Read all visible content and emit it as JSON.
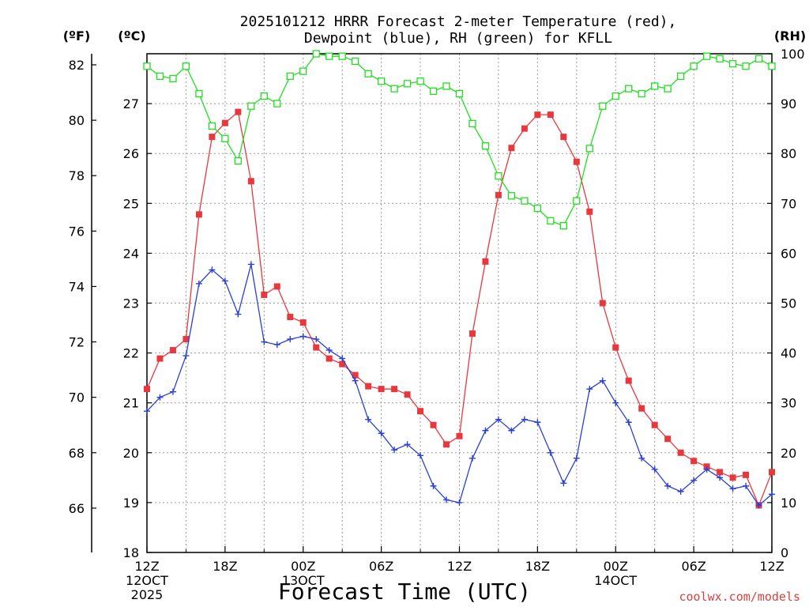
{
  "chart_data": {
    "type": "line",
    "title_line1": "2025101212 HRRR Forecast 2-meter Temperature (red),",
    "title_line2": "Dewpoint (blue), RH (green) for KFLL",
    "xlabel": "Forecast Time (UTC)",
    "credit": "coolwx.com/models",
    "units": {
      "left_f": "(ºF)",
      "left_c": "(ºC)",
      "right": "(RH)"
    },
    "forecast_hours": [
      0,
      1,
      2,
      3,
      4,
      5,
      6,
      7,
      8,
      9,
      10,
      11,
      12,
      13,
      14,
      15,
      16,
      17,
      18,
      19,
      20,
      21,
      22,
      23,
      24,
      25,
      26,
      27,
      28,
      29,
      30,
      31,
      32,
      33,
      34,
      35,
      36,
      37,
      38,
      39,
      40,
      41,
      42,
      43,
      44,
      45,
      46,
      47,
      48
    ],
    "x_ticks": [
      {
        "hour": 0,
        "lines": [
          "12Z",
          "12OCT",
          "2025"
        ]
      },
      {
        "hour": 6,
        "lines": [
          "18Z"
        ]
      },
      {
        "hour": 12,
        "lines": [
          "00Z",
          "13OCT"
        ]
      },
      {
        "hour": 18,
        "lines": [
          "06Z"
        ]
      },
      {
        "hour": 24,
        "lines": [
          "12Z"
        ]
      },
      {
        "hour": 30,
        "lines": [
          "18Z"
        ]
      },
      {
        "hour": 36,
        "lines": [
          "00Z",
          "14OCT"
        ]
      },
      {
        "hour": 42,
        "lines": [
          "06Z"
        ]
      },
      {
        "hour": 48,
        "lines": [
          "12Z"
        ]
      }
    ],
    "yaxis_f": {
      "ylim": [
        64.4,
        82.4
      ],
      "ticks": [
        66,
        68,
        70,
        72,
        74,
        76,
        78,
        80,
        82
      ]
    },
    "yaxis_c": {
      "ticks": [
        18,
        19,
        20,
        21,
        22,
        23,
        24,
        25,
        26,
        27
      ]
    },
    "yaxis_rh": {
      "ylim": [
        0,
        100
      ],
      "ticks": [
        0,
        10,
        20,
        30,
        40,
        50,
        60,
        70,
        80,
        90,
        100
      ]
    },
    "grid": true,
    "series": [
      {
        "name": "Temperature (red)",
        "color": "#e8383d",
        "axis": "F",
        "marker": "filled-square",
        "values": [
          70.3,
          71.4,
          71.7,
          72.1,
          76.6,
          79.4,
          79.9,
          80.3,
          77.8,
          73.7,
          74.0,
          72.9,
          72.7,
          71.8,
          71.4,
          71.2,
          70.8,
          70.4,
          70.3,
          70.3,
          70.1,
          69.5,
          69.0,
          68.3,
          68.6,
          72.3,
          74.9,
          77.3,
          79.0,
          79.7,
          80.2,
          80.2,
          79.4,
          78.5,
          76.7,
          73.4,
          71.8,
          70.6,
          69.6,
          69.0,
          68.5,
          68.0,
          67.7,
          67.5,
          67.3,
          67.1,
          67.2,
          66.1,
          67.3
        ]
      },
      {
        "name": "Dewpoint (blue)",
        "color": "#2a3fd6",
        "axis": "F",
        "marker": "plus",
        "values": [
          69.5,
          70.0,
          70.2,
          71.5,
          74.1,
          74.6,
          74.2,
          73.0,
          74.8,
          72.0,
          71.9,
          72.1,
          72.2,
          72.1,
          71.7,
          71.4,
          70.6,
          69.2,
          68.7,
          68.1,
          68.3,
          67.9,
          66.8,
          66.3,
          66.2,
          67.8,
          68.8,
          69.2,
          68.8,
          69.2,
          69.1,
          68.0,
          66.9,
          67.8,
          70.3,
          70.6,
          69.8,
          69.1,
          67.8,
          67.4,
          66.8,
          66.6,
          67.0,
          67.4,
          67.1,
          66.7,
          66.8,
          66.1,
          66.5
        ]
      },
      {
        "name": "RH (green)",
        "color": "#22dd22",
        "axis": "RH",
        "marker": "open-square",
        "values": [
          97.5,
          95.5,
          95,
          97.5,
          92,
          85.5,
          83,
          78.5,
          89.5,
          91.5,
          90,
          95.5,
          96.5,
          100,
          99.5,
          99.5,
          98.5,
          96,
          94.5,
          93,
          94,
          94.5,
          92.5,
          93.5,
          92,
          86,
          81.5,
          75.5,
          71.5,
          70.5,
          69,
          66.5,
          65.5,
          70.5,
          81,
          89.5,
          91.5,
          93,
          92,
          93.5,
          93,
          95.5,
          97.5,
          99.5,
          99,
          98,
          97.5,
          99,
          97.5
        ]
      }
    ]
  }
}
